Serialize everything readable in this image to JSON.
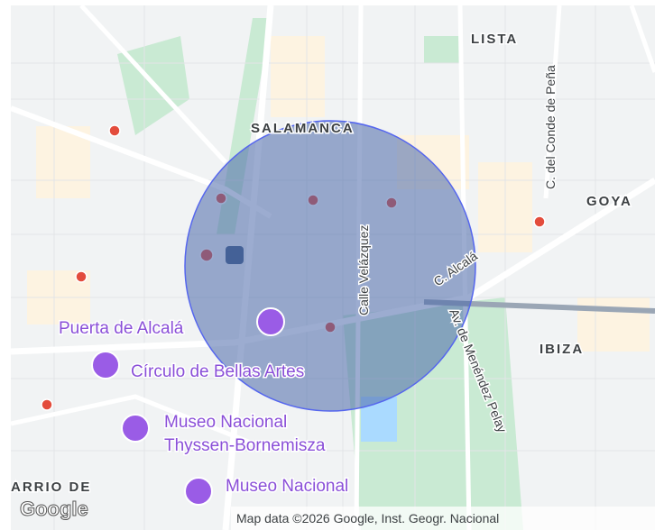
{
  "map": {
    "districts": [
      "LISTA",
      "SALAMANCA",
      "GOYA",
      "IBIZA",
      "ARRIO DE"
    ],
    "streets": [
      "C. del Conde de Peña",
      "Calle Velázquez",
      "C. Alcalá",
      "Av. de Menéndez Pelay"
    ],
    "places": [
      [
        "Puerta de Alcalá"
      ],
      [
        "Círculo de Bellas Artes"
      ],
      [
        "Museo Nacional",
        "Thyssen-Bornemisza"
      ],
      [
        "Museo Nacional"
      ]
    ],
    "logo": "Google",
    "attribution": "Map data ©2026 Google, Inst. Geogr. Nacional"
  }
}
